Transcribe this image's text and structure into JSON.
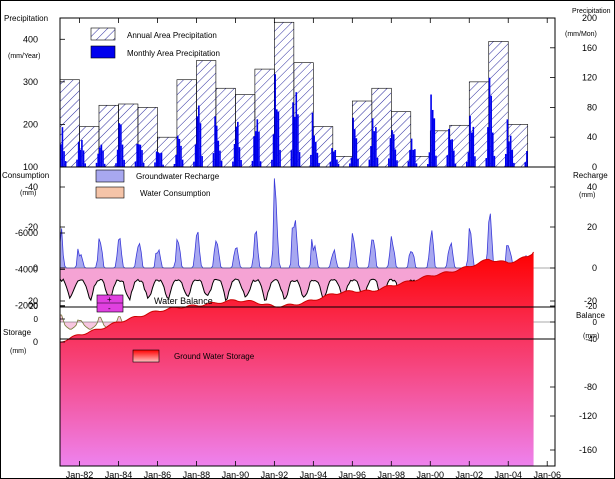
{
  "colors": {
    "precip_hatch": "#2b2b9f",
    "monthly_precip": "#0000ee",
    "recharge_fill": "#a8a8f0",
    "recharge_line": "#3a3ad8",
    "consumption_fill": "#f5a3d4",
    "consumption_line": "#000000",
    "balance_line": "#7a7a3a",
    "balance_fill": "#f7c6e0",
    "storage_top": "#ff0000",
    "storage_bottom": "#ee82ee",
    "storage_line": "#cc0000"
  },
  "x_axis": {
    "tick_labels": [
      "Jan-82",
      "Jan-84",
      "Jan-86",
      "Jan-88",
      "Jan-90",
      "Jan-92",
      "Jan-94",
      "Jan-96",
      "Jan-98",
      "Jan-00",
      "Jan-02",
      "Jan-04",
      "Jan-06"
    ]
  },
  "chart_data": [
    {
      "type": "bar",
      "title": "",
      "xlabel": "",
      "ylabel_left": "Precipitation",
      "ylabel_left_unit": "(mm/Year)",
      "ylabel_right": "Precipitation",
      "ylabel_right_unit": "(mm/Mon)",
      "left_ticks": [
        "100",
        "200",
        "300",
        "400"
      ],
      "right_ticks": [
        "0",
        "40",
        "80",
        "120",
        "160",
        "200"
      ],
      "ylim_left": [
        100,
        450
      ],
      "ylim_right": [
        0,
        200
      ],
      "legend": [
        "Annual Area Precipitation",
        "Monthly Area Precipitation"
      ],
      "legend_placement": "top-left",
      "annual_series": {
        "name": "Annual Area Precipitation",
        "segments": [
          {
            "start": 1981.0,
            "end": 1982.0,
            "value": 305
          },
          {
            "start": 1982.0,
            "end": 1983.0,
            "value": 195
          },
          {
            "start": 1983.0,
            "end": 1984.0,
            "value": 245
          },
          {
            "start": 1984.0,
            "end": 1985.0,
            "value": 248
          },
          {
            "start": 1985.0,
            "end": 1986.0,
            "value": 240
          },
          {
            "start": 1986.0,
            "end": 1987.0,
            "value": 170
          },
          {
            "start": 1987.0,
            "end": 1988.0,
            "value": 305
          },
          {
            "start": 1988.0,
            "end": 1989.0,
            "value": 350
          },
          {
            "start": 1989.0,
            "end": 1990.0,
            "value": 285
          },
          {
            "start": 1990.0,
            "end": 1991.0,
            "value": 270
          },
          {
            "start": 1991.0,
            "end": 1992.0,
            "value": 330
          },
          {
            "start": 1992.0,
            "end": 1993.0,
            "value": 440
          },
          {
            "start": 1993.0,
            "end": 1994.0,
            "value": 345
          },
          {
            "start": 1994.0,
            "end": 1995.0,
            "value": 195
          },
          {
            "start": 1995.0,
            "end": 1996.0,
            "value": 125
          },
          {
            "start": 1996.0,
            "end": 1997.0,
            "value": 255
          },
          {
            "start": 1997.0,
            "end": 1998.0,
            "value": 285
          },
          {
            "start": 1998.0,
            "end": 1999.0,
            "value": 230
          },
          {
            "start": 1999.0,
            "end": 2000.0,
            "value": 125
          },
          {
            "start": 2000.0,
            "end": 2001.0,
            "value": 185
          },
          {
            "start": 2001.0,
            "end": 2002.0,
            "value": 198
          },
          {
            "start": 2002.0,
            "end": 2003.0,
            "value": 300
          },
          {
            "start": 2003.0,
            "end": 2004.0,
            "value": 395
          },
          {
            "start": 2004.0,
            "end": 2005.0,
            "value": 200
          }
        ]
      },
      "monthly_series": {
        "name": "Monthly Area Precipitation",
        "peak_per_year": [
          58,
          38,
          45,
          62,
          52,
          33,
          70,
          120,
          60,
          65,
          75,
          145,
          120,
          45,
          28,
          70,
          85,
          55,
          40,
          110,
          45,
          85,
          130,
          48
        ]
      }
    },
    {
      "type": "area",
      "title": "",
      "ylabel_left": "Consumption",
      "ylabel_left_unit": "(mm)",
      "ylabel_right": "Recharge",
      "ylabel_right_unit": "(mm)",
      "left_ticks": [
        "-40",
        "-20",
        "0",
        "20"
      ],
      "right_ticks": [
        "40",
        "20",
        "0",
        "-20"
      ],
      "ylim": [
        -45,
        22
      ],
      "legend": [
        "Groundwater Recharge",
        "Water Consumption"
      ],
      "legend_placement": "top-left",
      "recharge_peak_per_year": [
        18,
        8,
        14,
        15,
        14,
        8,
        16,
        22,
        15,
        14,
        20,
        45,
        28,
        12,
        10,
        16,
        20,
        14,
        10,
        20,
        12,
        18,
        25,
        12
      ],
      "consumption_monthly_pattern": [
        5,
        5,
        5,
        6,
        8,
        10,
        12,
        12,
        10,
        8,
        6,
        5
      ]
    },
    {
      "type": "line",
      "title": "",
      "ylabel_left_ticks": [
        "20",
        "0"
      ],
      "ylabel_right": "Balance",
      "ylabel_right_unit": "(mm)",
      "right_ticks": [
        "-20",
        "0",
        "-40"
      ],
      "legend": [
        "Water Balance"
      ],
      "legend_symbols": [
        "+",
        "-"
      ],
      "legend_placement": "top-left"
    },
    {
      "type": "area",
      "title": "",
      "ylabel_left": "Storage",
      "ylabel_left_unit": "(mm)",
      "ylabel_right_unit": "",
      "left_ticks": [
        "0",
        "-2000",
        "-4000",
        "-6000"
      ],
      "right_ticks": [
        "-80",
        "-120",
        "-160"
      ],
      "ylim": [
        -6200,
        0
      ],
      "legend": [
        "Ground Water Storage"
      ],
      "legend_placement": "top-left",
      "points": [
        [
          1981.0,
          0
        ],
        [
          1982.0,
          -400
        ],
        [
          1983.0,
          -700
        ],
        [
          1984.0,
          -1100
        ],
        [
          1985.0,
          -1400
        ],
        [
          1986.0,
          -1700
        ],
        [
          1987.0,
          -1900
        ],
        [
          1988.0,
          -2000
        ],
        [
          1989.0,
          -2150
        ],
        [
          1990.0,
          -2300
        ],
        [
          1991.0,
          -2200
        ],
        [
          1992.0,
          -1950
        ],
        [
          1993.0,
          -2050
        ],
        [
          1994.0,
          -2300
        ],
        [
          1995.0,
          -2650
        ],
        [
          1996.0,
          -2800
        ],
        [
          1997.0,
          -2800
        ],
        [
          1998.0,
          -3100
        ],
        [
          1999.0,
          -3350
        ],
        [
          2000.0,
          -3650
        ],
        [
          2001.0,
          -3850
        ],
        [
          2002.0,
          -4150
        ],
        [
          2003.0,
          -4550
        ],
        [
          2004.0,
          -4350
        ],
        [
          2005.0,
          -4700
        ],
        [
          2005.3,
          -4950
        ]
      ]
    }
  ]
}
